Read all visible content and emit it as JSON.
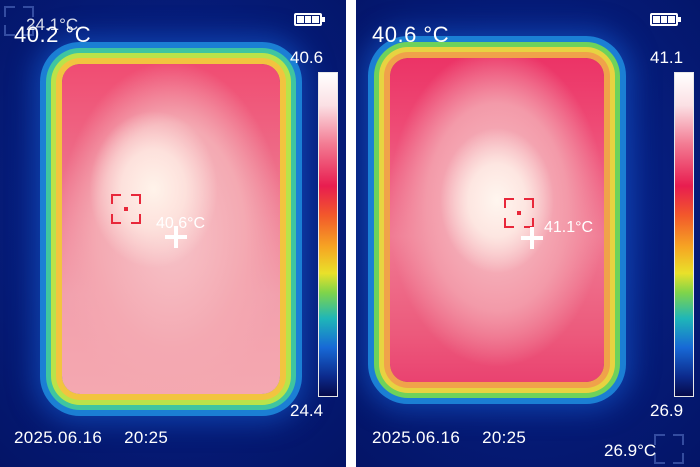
{
  "left_panel": {
    "overlay_small_temp": "24.1°C",
    "center_temp": "40.2 °C",
    "scale_max": "40.6",
    "scale_min": "24.4",
    "hotspot_temp": "40.6°C",
    "date": "2025.06.16",
    "time": "20:25"
  },
  "right_panel": {
    "center_temp": "40.6 °C",
    "scale_max": "41.1",
    "scale_min": "26.9",
    "hotspot_temp": "41.1°C",
    "date": "2025.06.16",
    "time": "20:25",
    "min_temp": "26.9°C"
  },
  "icons": {
    "battery": "battery-full-icon",
    "crosshair": "center-crosshair-icon",
    "hotspot": "hotspot-marker-icon"
  },
  "colors": {
    "background": "#061d7c",
    "text": "#ffffff",
    "crosshair": "#e8273a"
  }
}
